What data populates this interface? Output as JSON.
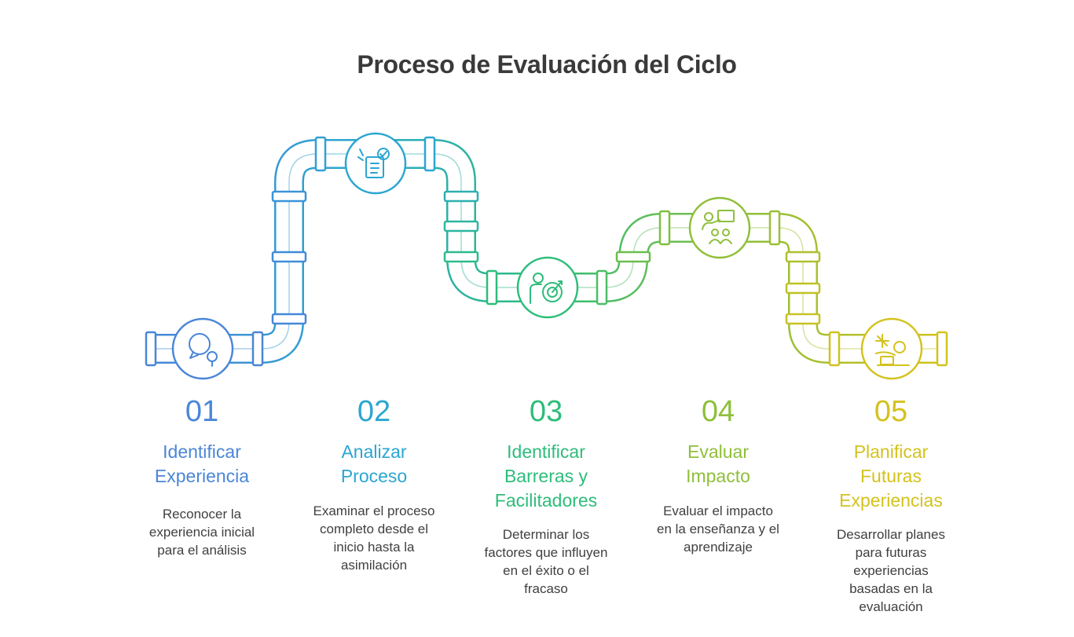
{
  "title": "Proceso de Evaluación del Ciclo",
  "steps": [
    {
      "number": "01",
      "heading": "Identificar\nExperiencia",
      "description": "Reconocer la\nexperiencia inicial\npara el análisis",
      "color": "#4a86d8",
      "icon": "person-search-icon"
    },
    {
      "number": "02",
      "heading": "Analizar\nProceso",
      "description": "Examinar el proceso\ncompleto desde el\ninicio hasta la\nasimilación",
      "color": "#2ba6d0",
      "icon": "checklist-analysis-icon"
    },
    {
      "number": "03",
      "heading": "Identificar\nBarreras y\nFacilitadores",
      "description": "Determinar los\nfactores que influyen\nen el éxito o el\nfracaso",
      "color": "#2dbd7a",
      "icon": "person-target-icon"
    },
    {
      "number": "04",
      "heading": "Evaluar\nImpacto",
      "description": "Evaluar el impacto\nen la enseñanza y el\naprendizaje",
      "color": "#8fbf3a",
      "icon": "teacher-students-icon"
    },
    {
      "number": "05",
      "heading": "Planificar\nFuturas\nExperiencias",
      "description": "Desarrollar planes\npara futuras\nexperiencias\nbasadas en la\nevaluación",
      "color": "#d4c21e",
      "icon": "planning-workspace-icon"
    }
  ]
}
